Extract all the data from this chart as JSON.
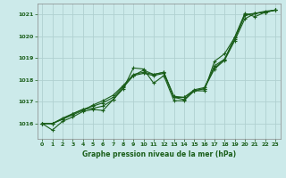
{
  "title": "Graphe pression niveau de la mer (hPa)",
  "background_color": "#cceaea",
  "grid_color": "#b0d0d0",
  "line_color": "#1a5e1a",
  "marker_color": "#1a5e1a",
  "xlim": [
    -0.5,
    23.5
  ],
  "ylim": [
    1015.3,
    1021.5
  ],
  "yticks": [
    1016,
    1017,
    1018,
    1019,
    1020,
    1021
  ],
  "xticks": [
    0,
    1,
    2,
    3,
    4,
    5,
    6,
    7,
    8,
    9,
    10,
    11,
    12,
    13,
    14,
    15,
    16,
    17,
    18,
    19,
    20,
    21,
    22,
    23
  ],
  "series": [
    [
      1016.0,
      1015.7,
      1016.1,
      1016.3,
      1016.55,
      1016.65,
      1016.6,
      1017.1,
      1017.6,
      1018.55,
      1018.5,
      1017.85,
      1018.2,
      1017.05,
      1017.05,
      1017.5,
      1017.5,
      1018.85,
      1019.2,
      1019.95,
      1021.05,
      1020.9,
      1021.1,
      1021.2
    ],
    [
      1016.0,
      1016.0,
      1016.25,
      1016.45,
      1016.65,
      1016.8,
      1016.95,
      1017.2,
      1017.7,
      1018.2,
      1018.3,
      1018.2,
      1018.3,
      1017.2,
      1017.2,
      1017.5,
      1017.6,
      1018.5,
      1018.9,
      1019.8,
      1020.8,
      1021.05,
      1021.1,
      1021.2
    ],
    [
      1016.0,
      1016.0,
      1016.2,
      1016.4,
      1016.6,
      1016.85,
      1017.05,
      1017.3,
      1017.75,
      1018.25,
      1018.35,
      1018.25,
      1018.35,
      1017.25,
      1017.2,
      1017.55,
      1017.65,
      1018.55,
      1018.95,
      1019.85,
      1020.95,
      1021.05,
      1021.15,
      1021.2
    ],
    [
      1016.0,
      1016.0,
      1016.2,
      1016.45,
      1016.65,
      1016.7,
      1016.8,
      1017.1,
      1017.65,
      1018.2,
      1018.45,
      1018.25,
      1018.35,
      1017.2,
      1017.1,
      1017.5,
      1017.6,
      1018.65,
      1018.95,
      1019.95,
      1021.0,
      1021.05,
      1021.1,
      1021.2
    ]
  ]
}
